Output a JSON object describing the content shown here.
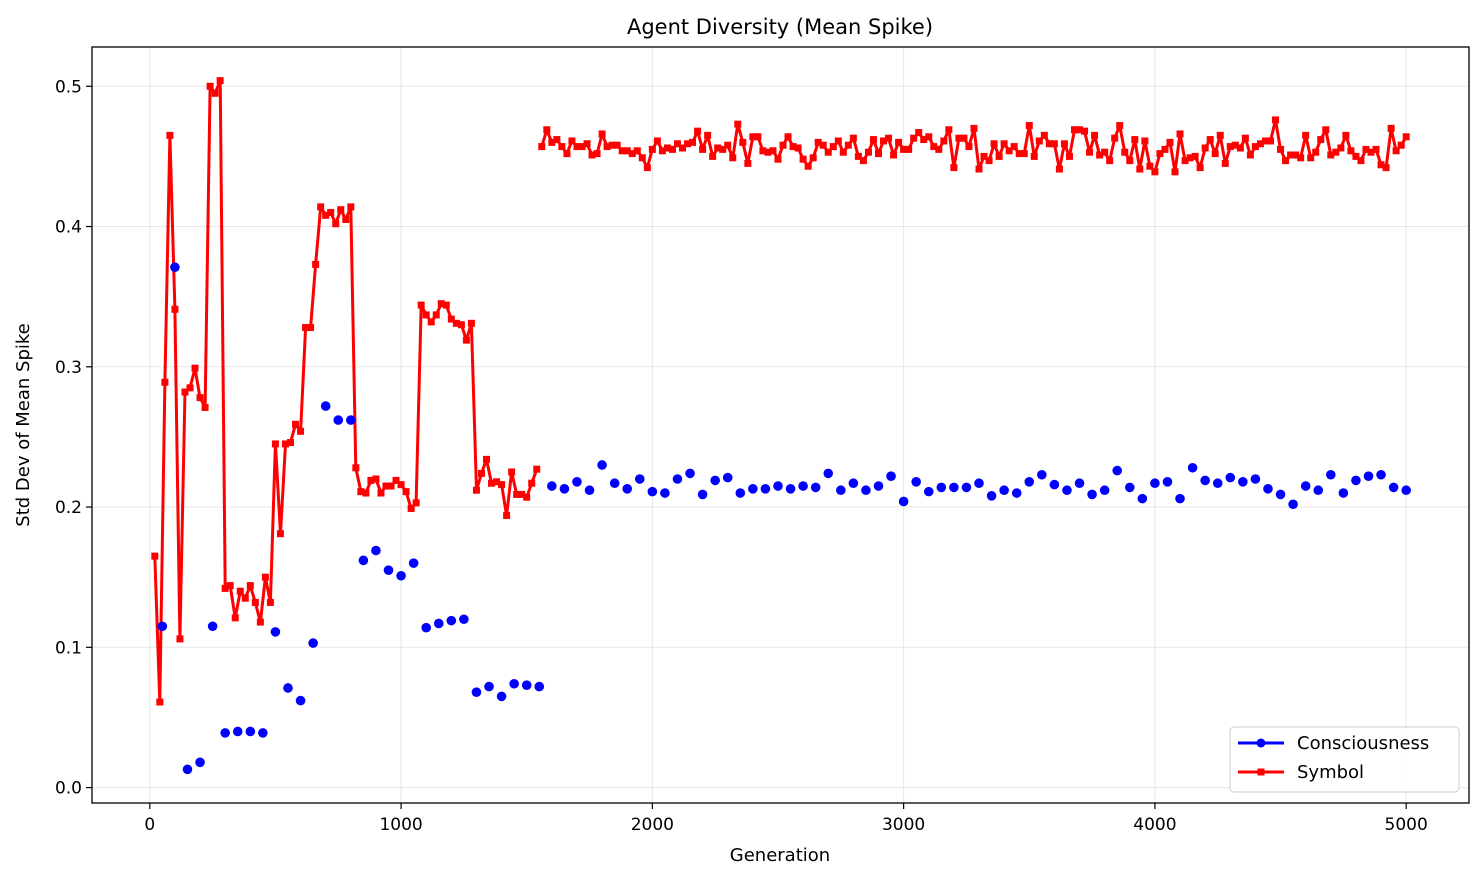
{
  "chart_data": {
    "type": "line",
    "title": "Agent Diversity (Mean Spike)",
    "xlabel": "Generation",
    "ylabel": "Std Dev of Mean Spike",
    "xlim": [
      -230,
      5250
    ],
    "ylim": [
      -0.011,
      0.528
    ],
    "xticks": [
      0,
      1000,
      2000,
      3000,
      4000,
      5000
    ],
    "xtick_labels": [
      "0",
      "1000",
      "2000",
      "3000",
      "4000",
      "5000"
    ],
    "yticks": [
      0.0,
      0.1,
      0.2,
      0.3,
      0.4,
      0.5
    ],
    "ytick_labels": [
      "0.0",
      "0.1",
      "0.2",
      "0.3",
      "0.4",
      "0.5"
    ],
    "grid": true,
    "legend_position": "lower-right",
    "series": [
      {
        "name": "Consciousness",
        "color": "#0000ff",
        "marker": "circle",
        "x": [
          50,
          100,
          150,
          200,
          250,
          300,
          350,
          400,
          450,
          500,
          550,
          600,
          650,
          700,
          750,
          800,
          850,
          900,
          950,
          1000,
          1050,
          1100,
          1150,
          1200,
          1250,
          1300,
          1350,
          1400,
          1450,
          1500,
          1550,
          1600,
          1650,
          1700,
          1750,
          1800,
          1850,
          1900,
          1950,
          2000,
          2050,
          2100,
          2150,
          2200,
          2250,
          2300,
          2350,
          2400,
          2450,
          2500,
          2550,
          2600,
          2650,
          2700,
          2750,
          2800,
          2850,
          2900,
          2950,
          3000,
          3050,
          3100,
          3150,
          3200,
          3250,
          3300,
          3350,
          3400,
          3450,
          3500,
          3550,
          3600,
          3650,
          3700,
          3750,
          3800,
          3850,
          3900,
          3950,
          4000,
          4050,
          4100,
          4150,
          4200,
          4250,
          4300,
          4350,
          4400,
          4450,
          4500,
          4550,
          4600,
          4650,
          4700,
          4750,
          4800,
          4850,
          4900,
          4950,
          5000
        ],
        "values": [
          0.115,
          0.371,
          0.013,
          0.018,
          0.115,
          0.039,
          0.04,
          0.04,
          0.039,
          0.111,
          0.071,
          0.062,
          0.103,
          0.272,
          0.262,
          0.262,
          0.162,
          0.169,
          0.155,
          0.151,
          0.16,
          0.114,
          0.117,
          0.119,
          0.12,
          0.068,
          0.072,
          0.065,
          0.074,
          0.073,
          0.072,
          0.215,
          0.213,
          0.218,
          0.212,
          0.23,
          0.217,
          0.213,
          0.22,
          0.211,
          0.21,
          0.22,
          0.224,
          0.209,
          0.219,
          0.221,
          0.21,
          0.213,
          0.213,
          0.215,
          0.213,
          0.215,
          0.214,
          0.224,
          0.212,
          0.217,
          0.212,
          0.215,
          0.222,
          0.204,
          0.218,
          0.211,
          0.214,
          0.214,
          0.214,
          0.217,
          0.208,
          0.212,
          0.21,
          0.218,
          0.223,
          0.216,
          0.212,
          0.217,
          0.209,
          0.212,
          0.226,
          0.214,
          0.206,
          0.217,
          0.218,
          0.206,
          0.228,
          0.219,
          0.217,
          0.221,
          0.218,
          0.22,
          0.213,
          0.209,
          0.202,
          0.215,
          0.212,
          0.223,
          0.21,
          0.219,
          0.222,
          0.223,
          0.214,
          0.212
        ]
      },
      {
        "name": "Symbol",
        "color": "#ff0000",
        "marker": "square",
        "x": [
          20,
          40,
          60,
          80,
          100,
          120,
          140,
          160,
          180,
          200,
          220,
          240,
          260,
          280,
          300,
          320,
          340,
          360,
          380,
          400,
          420,
          440,
          460,
          480,
          500,
          520,
          540,
          560,
          580,
          600,
          620,
          640,
          660,
          680,
          700,
          720,
          740,
          760,
          780,
          800,
          820,
          840,
          860,
          880,
          900,
          920,
          940,
          960,
          980,
          1000,
          1020,
          1040,
          1060,
          1080,
          1100,
          1120,
          1140,
          1160,
          1180,
          1200,
          1220,
          1240,
          1260,
          1280,
          1300,
          1320,
          1340,
          1360,
          1380,
          1400,
          1420,
          1440,
          1460,
          1480,
          1500,
          1520,
          1540
        ],
        "values": [
          0.165,
          0.061,
          0.289,
          0.465,
          0.341,
          0.106,
          0.282,
          0.285,
          0.299,
          0.278,
          0.271,
          0.5,
          0.495,
          0.504,
          0.142,
          0.144,
          0.121,
          0.14,
          0.135,
          0.144,
          0.132,
          0.118,
          0.15,
          0.132,
          0.245,
          0.181,
          0.245,
          0.246,
          0.259,
          0.254,
          0.328,
          0.328,
          0.373,
          0.414,
          0.408,
          0.41,
          0.402,
          0.412,
          0.405,
          0.414,
          0.228,
          0.211,
          0.21,
          0.219,
          0.22,
          0.21,
          0.215,
          0.215,
          0.219,
          0.216,
          0.211,
          0.199,
          0.203,
          0.344,
          0.337,
          0.332,
          0.337,
          0.345,
          0.344,
          0.334,
          0.331,
          0.33,
          0.319,
          0.331,
          0.212,
          0.224,
          0.234,
          0.217,
          0.218,
          0.216,
          0.194,
          0.225,
          0.209,
          0.209,
          0.207,
          0.217,
          0.227
        ]
      }
    ],
    "symbol_tail_generated": {
      "x_start": 1560,
      "x_end": 5000,
      "x_step": 20,
      "mean": 0.456,
      "spread": 0.014
    }
  }
}
